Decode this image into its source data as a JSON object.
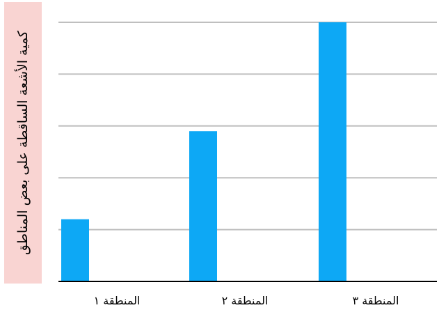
{
  "chart_data": {
    "type": "bar",
    "ylabel": "كمية الأشعة الساقطة على بعض المناطق",
    "xlabel": "",
    "categories": [
      "المنطقة ١",
      "المنطقة ٢",
      "المنطقة ٣"
    ],
    "values": [
      1.2,
      2.9,
      5.0
    ],
    "ylim": [
      0,
      5
    ],
    "grid": true,
    "bar_color": "#0da8f5",
    "ylabel_background": "#f9d4d2"
  }
}
